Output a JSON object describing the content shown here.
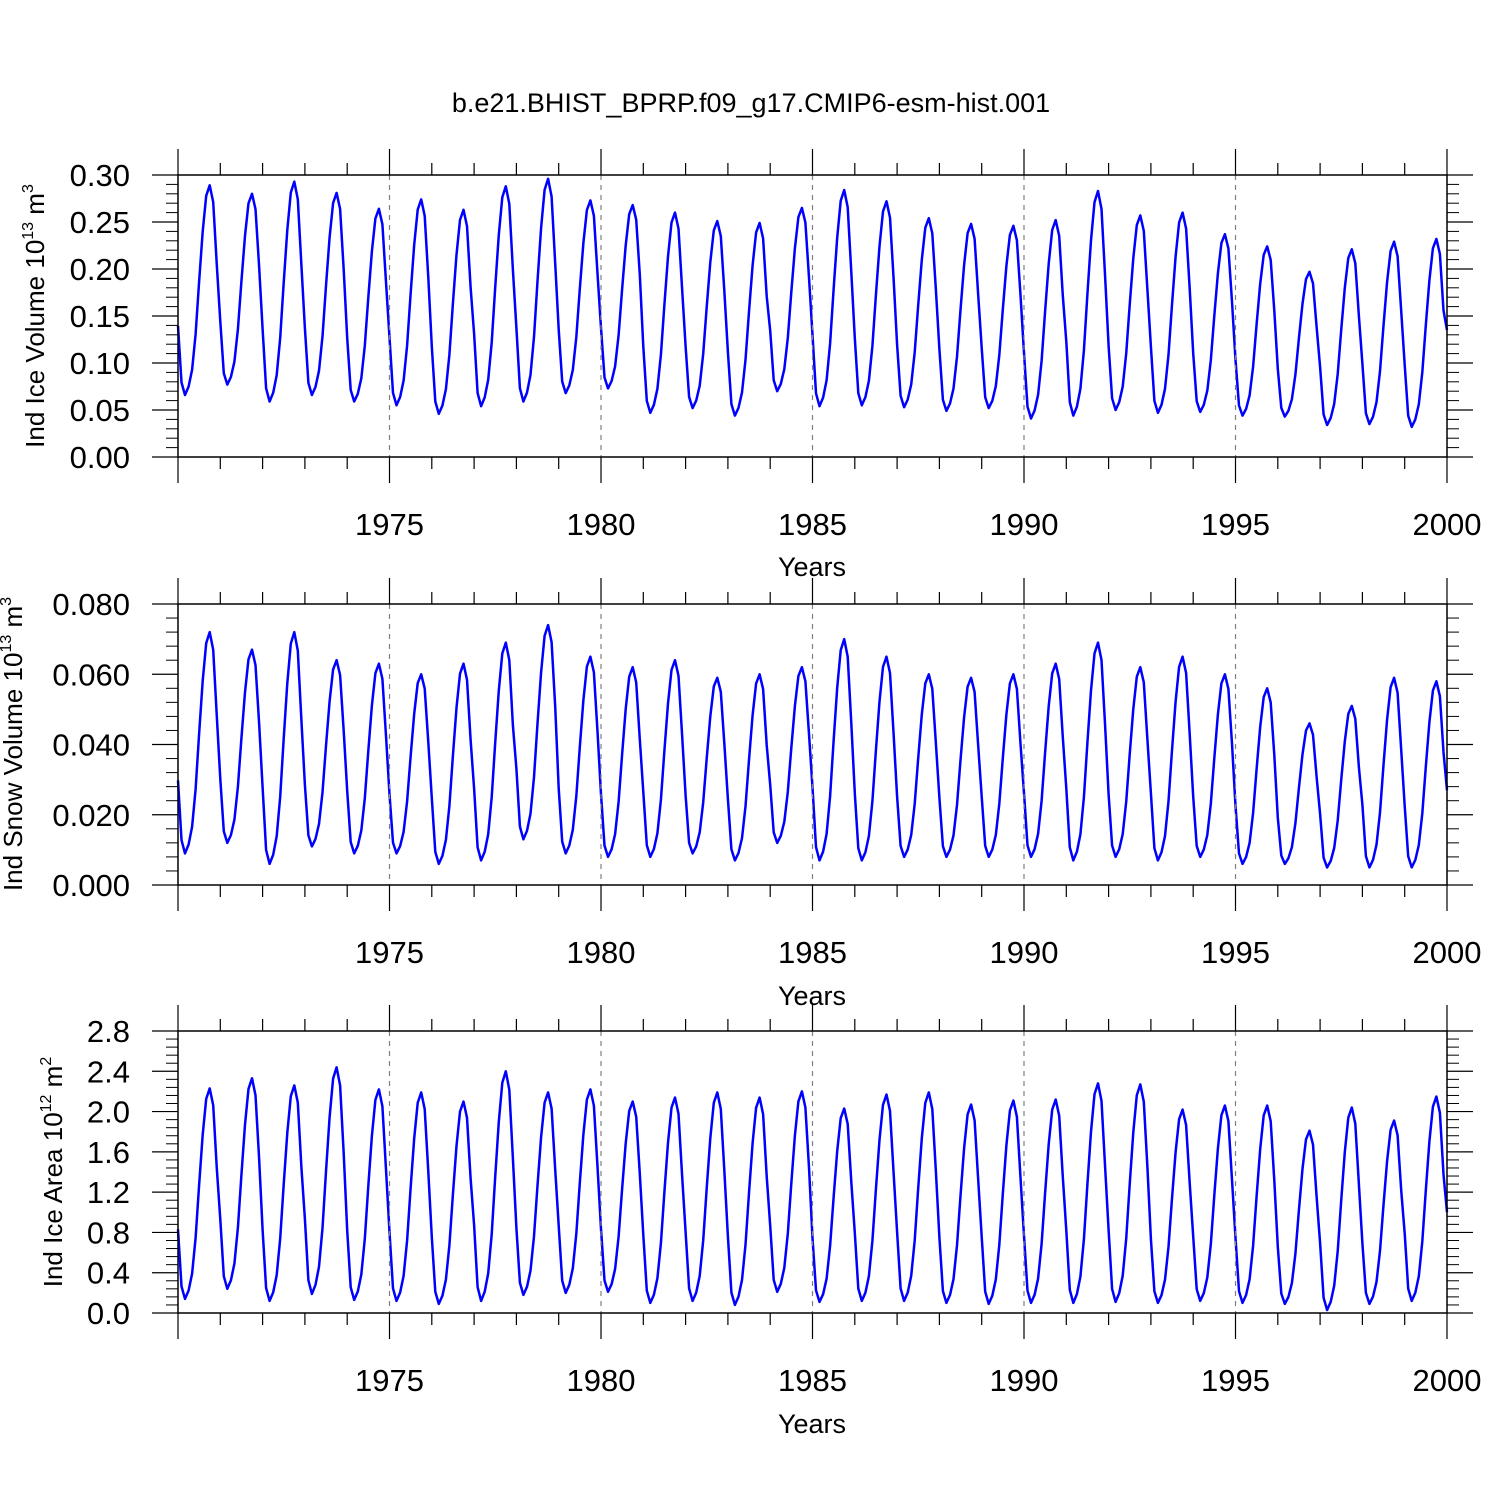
{
  "title": "b.e21.BHIST_BPRP.f09_g17.CMIP6-esm-hist.001",
  "colors": {
    "line": "#0000ff",
    "axis": "#000000",
    "gridline": "#808080",
    "background": "#ffffff"
  },
  "chart_data": [
    {
      "type": "line",
      "xlabel": "Years",
      "ylabel_main": "Ind Ice Volume 10",
      "ylabel_exp": "13",
      "ylabel_unit": " m",
      "ylabel_unit_exp": "3",
      "xlim": [
        1970,
        2000
      ],
      "ylim": [
        0,
        0.3
      ],
      "xticks": [
        1975,
        1980,
        1985,
        1990,
        1995,
        2000
      ],
      "xtick_labels": [
        "1975",
        "1980",
        "1985",
        "1990",
        "1995",
        "2000"
      ],
      "yticks": [
        0,
        0.05,
        0.1,
        0.15,
        0.2,
        0.25,
        0.3
      ],
      "ytick_labels": [
        "0.00",
        "0.05",
        "0.10",
        "0.15",
        "0.20",
        "0.25",
        "0.30"
      ],
      "vertical_reference_lines": [
        1975,
        1980,
        1985,
        1990,
        1995
      ],
      "x_start": 1970.0,
      "x_step": 0.0833333,
      "series": [
        {
          "name": "Ind Ice Volume",
          "seasonal_max": [
            0.289,
            0.28,
            0.293,
            0.281,
            0.264,
            0.274,
            0.263,
            0.288,
            0.296,
            0.273,
            0.268,
            0.26,
            0.251,
            0.249,
            0.265,
            0.284,
            0.272,
            0.254,
            0.248,
            0.246,
            0.252,
            0.283,
            0.257,
            0.26,
            0.237,
            0.224,
            0.197,
            0.221,
            0.229,
            0.232
          ],
          "seasonal_min": [
            0.066,
            0.077,
            0.059,
            0.066,
            0.059,
            0.055,
            0.046,
            0.054,
            0.059,
            0.068,
            0.073,
            0.047,
            0.052,
            0.044,
            0.07,
            0.054,
            0.055,
            0.053,
            0.049,
            0.052,
            0.041,
            0.044,
            0.05,
            0.047,
            0.048,
            0.044,
            0.043,
            0.034,
            0.035,
            0.032
          ],
          "end_value": 0.135
        }
      ]
    },
    {
      "type": "line",
      "xlabel": "Years",
      "ylabel_main": "Ind Snow Volume 10",
      "ylabel_exp": "13",
      "ylabel_unit": " m",
      "ylabel_unit_exp": "3",
      "xlim": [
        1970,
        2000
      ],
      "ylim": [
        0,
        0.08
      ],
      "xticks": [
        1975,
        1980,
        1985,
        1990,
        1995,
        2000
      ],
      "xtick_labels": [
        "1975",
        "1980",
        "1985",
        "1990",
        "1995",
        "2000"
      ],
      "yticks": [
        0,
        0.02,
        0.04,
        0.06,
        0.08
      ],
      "ytick_labels": [
        "0.000",
        "0.020",
        "0.040",
        "0.060",
        "0.080"
      ],
      "vertical_reference_lines": [
        1975,
        1980,
        1985,
        1990,
        1995
      ],
      "x_start": 1970.0,
      "x_step": 0.0833333,
      "series": [
        {
          "name": "Ind Snow Volume",
          "seasonal_max": [
            0.072,
            0.067,
            0.072,
            0.064,
            0.063,
            0.06,
            0.063,
            0.069,
            0.074,
            0.065,
            0.062,
            0.064,
            0.059,
            0.06,
            0.062,
            0.07,
            0.065,
            0.06,
            0.059,
            0.06,
            0.063,
            0.069,
            0.062,
            0.065,
            0.06,
            0.056,
            0.046,
            0.051,
            0.059,
            0.058
          ],
          "seasonal_min": [
            0.009,
            0.012,
            0.006,
            0.011,
            0.009,
            0.009,
            0.006,
            0.007,
            0.013,
            0.009,
            0.008,
            0.008,
            0.009,
            0.007,
            0.012,
            0.007,
            0.007,
            0.008,
            0.008,
            0.008,
            0.008,
            0.007,
            0.008,
            0.007,
            0.008,
            0.006,
            0.006,
            0.005,
            0.005,
            0.005
          ],
          "end_value": 0.027
        }
      ]
    },
    {
      "type": "line",
      "xlabel": "Years",
      "ylabel_main": "Ind Ice Area 10",
      "ylabel_exp": "12",
      "ylabel_unit": " m",
      "ylabel_unit_exp": "2",
      "xlim": [
        1970,
        2000
      ],
      "ylim": [
        0,
        2.8
      ],
      "xticks": [
        1975,
        1980,
        1985,
        1990,
        1995,
        2000
      ],
      "xtick_labels": [
        "1975",
        "1980",
        "1985",
        "1990",
        "1995",
        "2000"
      ],
      "yticks": [
        0,
        0.4,
        0.8,
        1.2,
        1.6,
        2.0,
        2.4,
        2.8
      ],
      "ytick_labels": [
        "0.0",
        "0.4",
        "0.8",
        "1.2",
        "1.6",
        "2.0",
        "2.4",
        "2.8"
      ],
      "vertical_reference_lines": [
        1975,
        1980,
        1985,
        1990,
        1995
      ],
      "x_start": 1970.0,
      "x_step": 0.0833333,
      "series": [
        {
          "name": "Ind Ice Area",
          "seasonal_max": [
            2.23,
            2.33,
            2.26,
            2.44,
            2.22,
            2.19,
            2.1,
            2.4,
            2.19,
            2.22,
            2.1,
            2.14,
            2.19,
            2.14,
            2.2,
            2.03,
            2.17,
            2.19,
            2.07,
            2.11,
            2.12,
            2.28,
            2.27,
            2.02,
            2.06,
            2.06,
            1.81,
            2.04,
            1.91,
            2.15
          ],
          "seasonal_min": [
            0.14,
            0.24,
            0.12,
            0.19,
            0.13,
            0.12,
            0.09,
            0.12,
            0.18,
            0.2,
            0.21,
            0.1,
            0.12,
            0.08,
            0.21,
            0.11,
            0.12,
            0.12,
            0.1,
            0.09,
            0.1,
            0.1,
            0.11,
            0.1,
            0.12,
            0.1,
            0.09,
            0.03,
            0.09,
            0.12
          ],
          "end_value": 1.0
        }
      ]
    }
  ]
}
